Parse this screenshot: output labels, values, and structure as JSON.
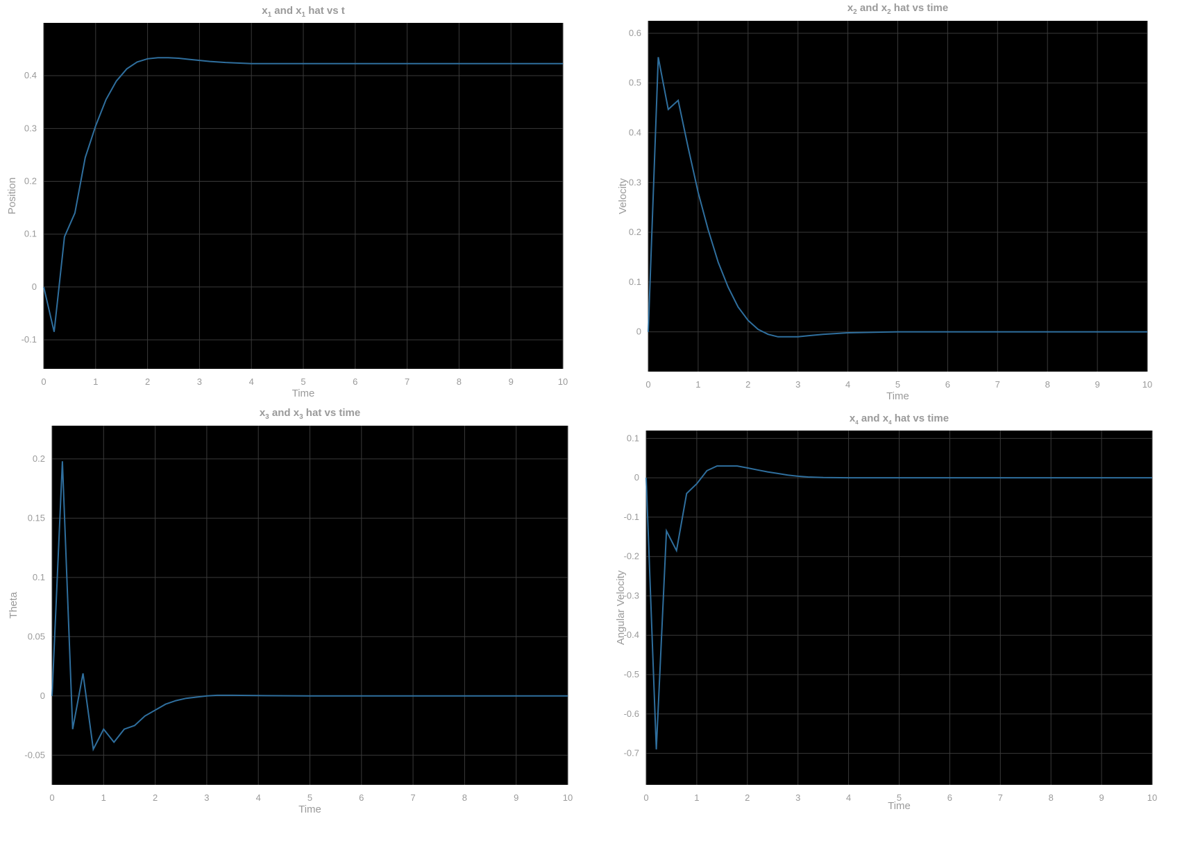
{
  "figure": {
    "background": "#ffffff",
    "plot_background": "#000000",
    "grid_color": "#3a3a3a",
    "text_color": "#9a9a9a"
  },
  "chart_data": [
    {
      "type": "line",
      "title_parts": [
        {
          "t": "x",
          "sub": false
        },
        {
          "t": "1",
          "sub": true
        },
        {
          "t": " and x",
          "sub": false
        },
        {
          "t": "1",
          "sub": true
        },
        {
          "t": " hat vs t",
          "sub": false
        }
      ],
      "xlabel": "Time",
      "ylabel": "Position",
      "xlim": [
        0,
        10
      ],
      "ylim": [
        -0.155,
        0.5
      ],
      "xticks": [
        0,
        1,
        2,
        3,
        4,
        5,
        6,
        7,
        8,
        9,
        10
      ],
      "yticks": [
        -0.1,
        0,
        0.1,
        0.2,
        0.3,
        0.4
      ],
      "grid": true,
      "series": [
        {
          "color": "#2f6f9e",
          "x": [
            0,
            0.2,
            0.4,
            0.6,
            0.8,
            1.0,
            1.2,
            1.4,
            1.6,
            1.8,
            2.0,
            2.2,
            2.4,
            2.6,
            2.8,
            3.0,
            3.2,
            3.5,
            4.0,
            5.0,
            6.0,
            7.0,
            8.0,
            9.0,
            10.0
          ],
          "y": [
            0,
            -0.085,
            0.095,
            0.14,
            0.245,
            0.305,
            0.355,
            0.39,
            0.413,
            0.426,
            0.432,
            0.434,
            0.434,
            0.433,
            0.431,
            0.429,
            0.427,
            0.425,
            0.423,
            0.423,
            0.423,
            0.423,
            0.423,
            0.423,
            0.423
          ]
        }
      ]
    },
    {
      "type": "line",
      "title_parts": [
        {
          "t": "x",
          "sub": false
        },
        {
          "t": "2",
          "sub": true
        },
        {
          "t": " and x",
          "sub": false
        },
        {
          "t": "2",
          "sub": true
        },
        {
          "t": " hat vs time",
          "sub": false
        }
      ],
      "xlabel": "Time",
      "ylabel": "Velocity",
      "xlim": [
        0,
        10
      ],
      "ylim": [
        -0.08,
        0.625
      ],
      "xticks": [
        0,
        1,
        2,
        3,
        4,
        5,
        6,
        7,
        8,
        9,
        10
      ],
      "yticks": [
        0,
        0.1,
        0.2,
        0.3,
        0.4,
        0.5,
        0.6
      ],
      "grid": true,
      "series": [
        {
          "color": "#2f6f9e",
          "x": [
            0,
            0.2,
            0.4,
            0.6,
            0.8,
            1.0,
            1.2,
            1.4,
            1.6,
            1.8,
            2.0,
            2.2,
            2.4,
            2.6,
            2.8,
            3.0,
            3.2,
            3.5,
            4.0,
            5.0,
            6.0,
            7.0,
            8.0,
            9.0,
            10.0
          ],
          "y": [
            0,
            0.552,
            0.447,
            0.465,
            0.37,
            0.28,
            0.205,
            0.14,
            0.09,
            0.05,
            0.023,
            0.005,
            -0.005,
            -0.01,
            -0.01,
            -0.01,
            -0.008,
            -0.005,
            -0.002,
            0,
            0,
            0,
            0,
            0,
            0
          ]
        }
      ]
    },
    {
      "type": "line",
      "title_parts": [
        {
          "t": "x",
          "sub": false
        },
        {
          "t": "3",
          "sub": true
        },
        {
          "t": " and x",
          "sub": false
        },
        {
          "t": "3",
          "sub": true
        },
        {
          "t": " hat vs time",
          "sub": false
        }
      ],
      "xlabel": "Time",
      "ylabel": "Theta",
      "xlim": [
        0,
        10
      ],
      "ylim": [
        -0.075,
        0.228
      ],
      "xticks": [
        0,
        1,
        2,
        3,
        4,
        5,
        6,
        7,
        8,
        9,
        10
      ],
      "yticks": [
        -0.05,
        0,
        0.05,
        0.1,
        0.15,
        0.2
      ],
      "grid": true,
      "series": [
        {
          "color": "#2f6f9e",
          "x": [
            0,
            0.2,
            0.4,
            0.6,
            0.8,
            1.0,
            1.2,
            1.4,
            1.6,
            1.8,
            2.0,
            2.2,
            2.4,
            2.6,
            2.8,
            3.0,
            3.2,
            3.5,
            4.0,
            5.0,
            6.0,
            7.0,
            8.0,
            9.0,
            10.0
          ],
          "y": [
            0,
            0.198,
            -0.028,
            0.019,
            -0.045,
            -0.028,
            -0.039,
            -0.028,
            -0.025,
            -0.017,
            -0.012,
            -0.007,
            -0.004,
            -0.002,
            -0.001,
            0,
            0.0005,
            0.0005,
            0.0003,
            0,
            0,
            0,
            0,
            0,
            0
          ]
        }
      ]
    },
    {
      "type": "line",
      "title_parts": [
        {
          "t": "x",
          "sub": false
        },
        {
          "t": "4",
          "sub": true
        },
        {
          "t": " and x",
          "sub": false
        },
        {
          "t": "4",
          "sub": true
        },
        {
          "t": " hat vs time",
          "sub": false
        }
      ],
      "xlabel": "Time",
      "ylabel": "Angular Velocity",
      "xlim": [
        0,
        10
      ],
      "ylim": [
        -0.78,
        0.12
      ],
      "xticks": [
        0,
        1,
        2,
        3,
        4,
        5,
        6,
        7,
        8,
        9,
        10
      ],
      "yticks": [
        -0.7,
        -0.6,
        -0.5,
        -0.4,
        -0.3,
        -0.2,
        -0.1,
        0,
        0.1
      ],
      "grid": true,
      "series": [
        {
          "color": "#2f6f9e",
          "x": [
            0,
            0.2,
            0.4,
            0.6,
            0.8,
            1.0,
            1.2,
            1.4,
            1.6,
            1.8,
            2.0,
            2.2,
            2.4,
            2.6,
            2.8,
            3.0,
            3.2,
            3.5,
            4.0,
            5.0,
            6.0,
            7.0,
            8.0,
            9.0,
            10.0
          ],
          "y": [
            0,
            -0.69,
            -0.135,
            -0.185,
            -0.04,
            -0.015,
            0.018,
            0.03,
            0.03,
            0.03,
            0.025,
            0.02,
            0.015,
            0.011,
            0.007,
            0.004,
            0.002,
            0.0005,
            0,
            0,
            0,
            0,
            0,
            0,
            0
          ]
        }
      ]
    }
  ]
}
